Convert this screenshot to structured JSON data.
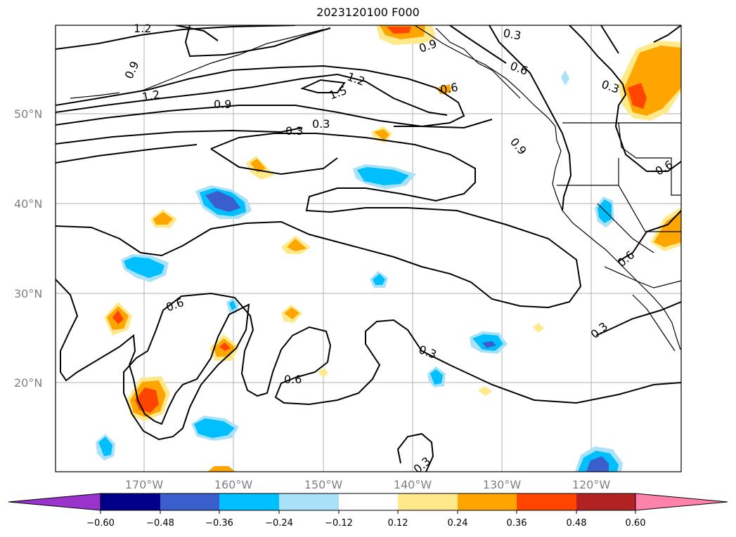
{
  "title": "2023120100 F000",
  "map": {
    "lat_labels": [
      "50°N",
      "40°N",
      "30°N",
      "20°N"
    ],
    "lon_labels": [
      "170°W",
      "160°W",
      "150°W",
      "140°W",
      "130°W",
      "120°W"
    ],
    "contour_labels": [
      "1.2",
      "0.9",
      "1.2",
      "1.2",
      "1.5",
      "0.9",
      "0.3",
      "0.3",
      "0.9",
      "0.6",
      "0.3",
      "0.6",
      "0.9",
      "0.6",
      "0.6",
      "0.3",
      "0.6",
      "0.6",
      "0.3",
      "0.3",
      "0.3"
    ],
    "gridlines": true
  },
  "colorbar": {
    "ticks": [
      "−0.60",
      "−0.48",
      "−0.36",
      "−0.24",
      "−0.12",
      "0.12",
      "0.24",
      "0.36",
      "0.48",
      "0.60"
    ],
    "colors": [
      "#9933cc",
      "#00008b",
      "#3a5fcd",
      "#00bfff",
      "#a9e2f8",
      "#ffffff",
      "#ffe98a",
      "#ffa500",
      "#ff4500",
      "#b22222",
      "#ff82ab"
    ],
    "extend": "both"
  }
}
